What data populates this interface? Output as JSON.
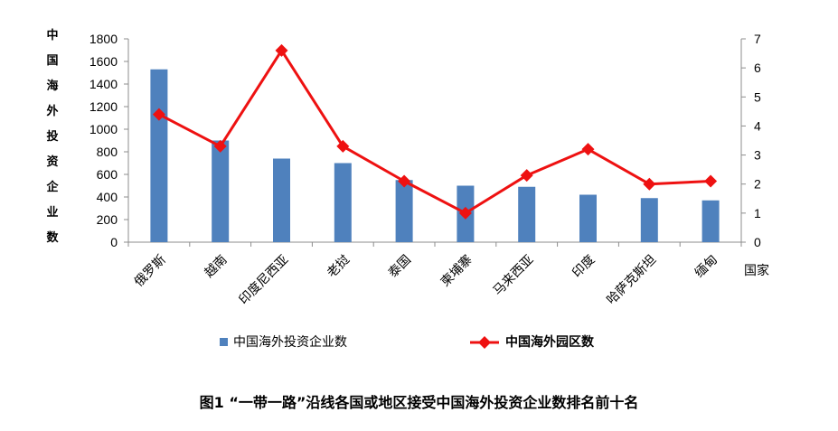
{
  "chart_data": {
    "type": "bar",
    "categories": [
      "俄罗斯",
      "越南",
      "印度尼西亚",
      "老挝",
      "泰国",
      "柬埔寨",
      "马来西亚",
      "印度",
      "哈萨克斯坦",
      "缅甸"
    ],
    "series": [
      {
        "name": "中国海外投资企业数",
        "type": "bar",
        "axis": "left",
        "color": "#4f81bd",
        "values": [
          1530,
          900,
          740,
          700,
          550,
          500,
          490,
          420,
          390,
          370
        ]
      },
      {
        "name": "中国海外园区数",
        "type": "line",
        "axis": "right",
        "color": "#ee1111",
        "values": [
          4.4,
          3.3,
          6.6,
          3.3,
          2.1,
          1.0,
          2.3,
          3.2,
          2.0,
          2.1
        ]
      }
    ],
    "ylabel": "中国海外投资企业数",
    "xlabel": "国家",
    "ylim": [
      0,
      1800
    ],
    "y_ticks": [
      "1800",
      "1600",
      "1400",
      "1200",
      "1000",
      "800",
      "600",
      "400",
      "200",
      "0"
    ],
    "y2lim": [
      0,
      7
    ],
    "y2_ticks": [
      "7",
      "6",
      "5",
      "4",
      "3",
      "2",
      "1",
      "0"
    ],
    "grid": false,
    "legend": "bottom",
    "caption": "图1 “一带一路”沿线各国或地区接受中国海外投资企业数排名前十名"
  }
}
